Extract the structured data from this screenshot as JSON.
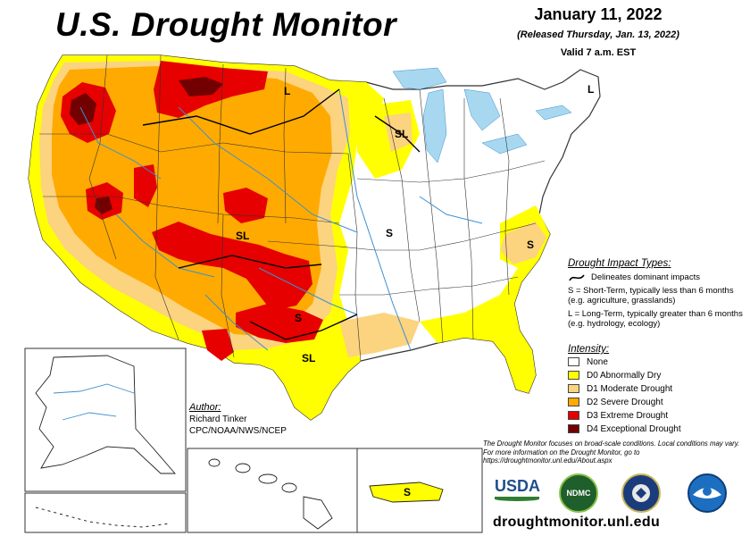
{
  "map": {
    "title": "U.S. Drought Monitor",
    "date": "January 11, 2022",
    "released": "(Released Thursday, Jan. 13, 2022)",
    "valid": "Valid 7 a.m. EST"
  },
  "impact_types": {
    "heading": "Drought Impact Types:",
    "delineates": "Delineates dominant impacts",
    "short_term": "S = Short-Term, typically less than 6 months (e.g. agriculture, grasslands)",
    "long_term": "L = Long-Term, typically greater than 6 months (e.g. hydrology, ecology)"
  },
  "map_labels": {
    "l": "L",
    "sl": "SL",
    "s": "S"
  },
  "intensity": {
    "heading": "Intensity:",
    "levels": [
      {
        "label": "None",
        "color": "#ffffff"
      },
      {
        "label": "D0 Abnormally Dry",
        "color": "#ffff00"
      },
      {
        "label": "D1 Moderate Drought",
        "color": "#fcd37f"
      },
      {
        "label": "D2 Severe Drought",
        "color": "#ffaa00"
      },
      {
        "label": "D3 Extreme Drought",
        "color": "#e60000"
      },
      {
        "label": "D4 Exceptional Drought",
        "color": "#730000"
      }
    ]
  },
  "author": {
    "label": "Author:",
    "name": "Richard Tinker",
    "org": "CPC/NOAA/NWS/NCEP"
  },
  "note": "The Drought Monitor focuses on broad-scale conditions. Local conditions may vary. For more information on the Drought Monitor, go to https://droughtmonitor.unl.edu/About.aspx",
  "logos": {
    "usda": "USDA",
    "ndmc": "NDMC"
  },
  "website": "droughtmonitor.unl.edu",
  "colors": {
    "water": "#a8d8f0",
    "river": "#3c8fd0",
    "border": "#333333"
  }
}
